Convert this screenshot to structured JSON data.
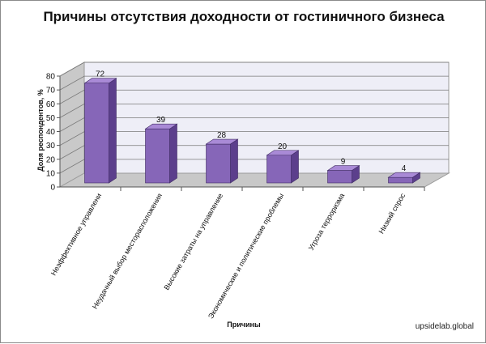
{
  "chart_data": {
    "type": "bar",
    "title": "Причины отсутствия доходности от гостиничного бизнеса",
    "xlabel": "Причины",
    "ylabel": "Доля респондентов, %",
    "ylim": [
      0,
      80
    ],
    "yticks": [
      0,
      10,
      20,
      30,
      40,
      50,
      60,
      70,
      80
    ],
    "grid": true,
    "categories": [
      "Неэффективное управлени",
      "Неудачный выбор месторасположения",
      "Высокие затраты на управление",
      "Экономические и политические проблемы",
      "Угроза терроризма",
      "Низкий спрос"
    ],
    "values": [
      72,
      39,
      28,
      20,
      9,
      4
    ],
    "colors": {
      "bar_front": "#8666b8",
      "bar_side": "#5c3f8c",
      "bar_top": "#a98ad6",
      "wall": "#eeeef7",
      "floor": "#c8c8c8"
    }
  },
  "source": "upsidelab.global"
}
